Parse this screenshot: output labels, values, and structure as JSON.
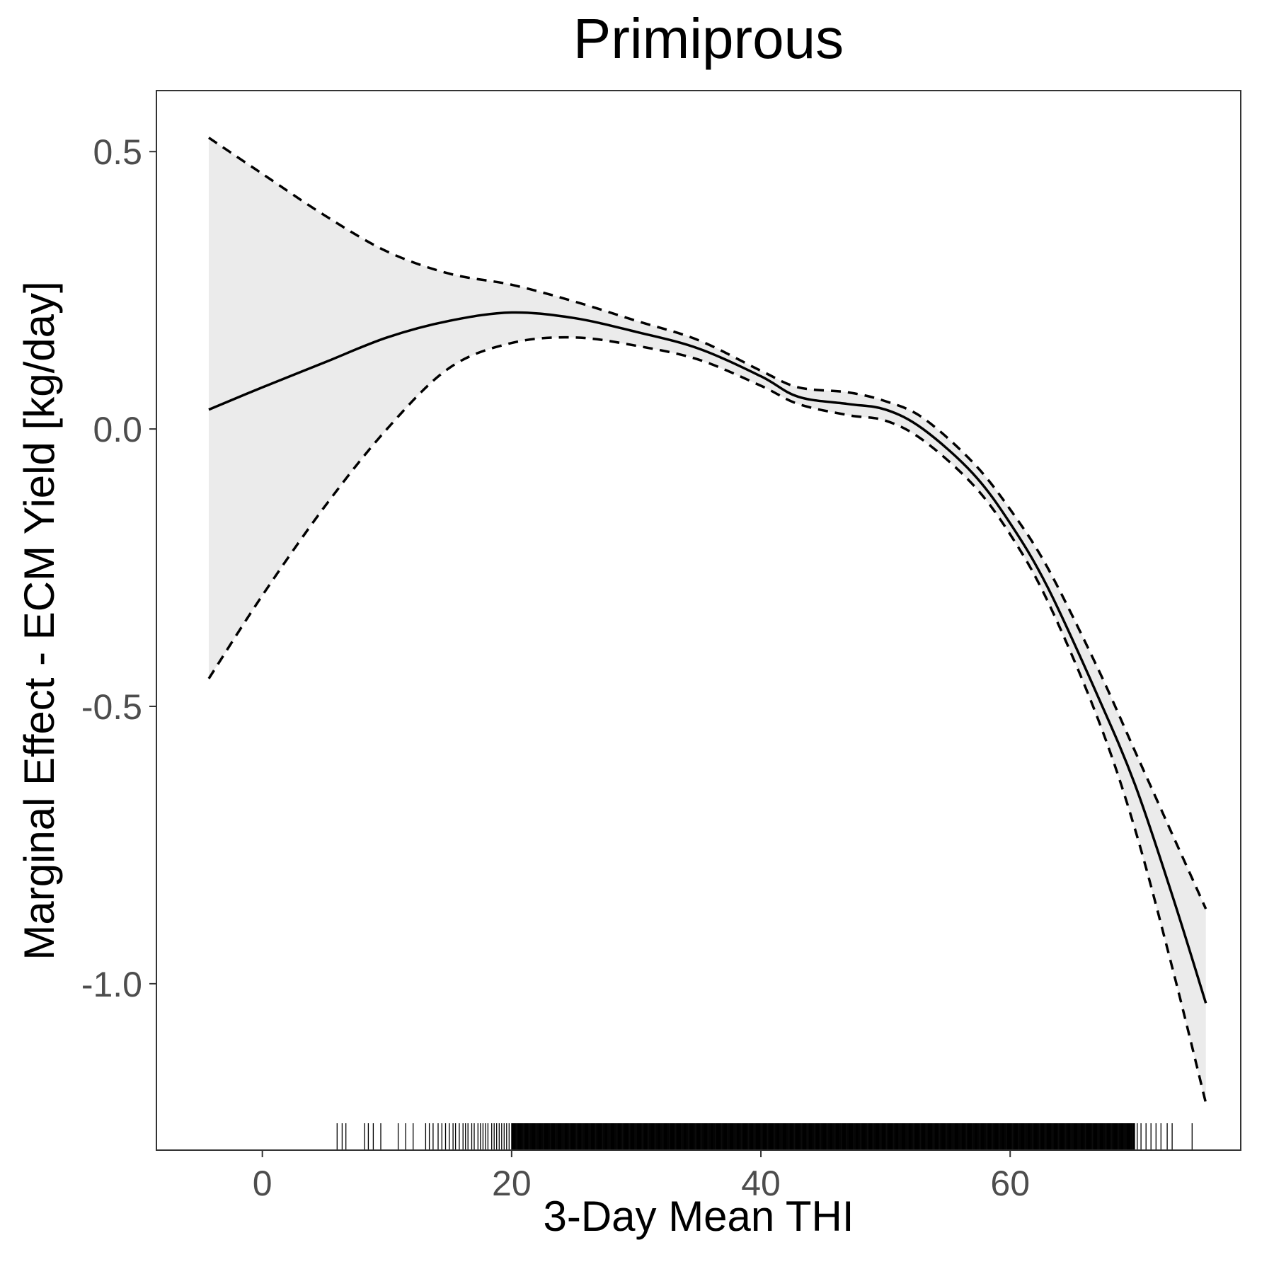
{
  "chart_data": {
    "type": "line",
    "title": "Primiprous",
    "xlabel": "3-Day Mean THI",
    "ylabel": "Marginal Effect - ECM Yield [kg/day]",
    "xlim": [
      -8.5,
      78.5
    ],
    "ylim": [
      -1.3,
      0.61
    ],
    "x_ticks": [
      0,
      20,
      40,
      60
    ],
    "x_tick_labels": [
      "0",
      "20",
      "40",
      "60"
    ],
    "y_ticks": [
      0.5,
      0.0,
      -0.5,
      -1.0
    ],
    "y_tick_labels": [
      "0.5",
      "0.0",
      "-0.5",
      "-1.0"
    ],
    "grid": false,
    "series": [
      {
        "role": "fit",
        "style": "solid",
        "x": [
          -4.3,
          0,
          5,
          10,
          15,
          20,
          25,
          30,
          35,
          40,
          43,
          47,
          50,
          53,
          57,
          60,
          63,
          67,
          70,
          73,
          75.7
        ],
        "y": [
          0.035,
          0.075,
          0.12,
          0.165,
          0.195,
          0.21,
          0.2,
          0.175,
          0.145,
          0.095,
          0.058,
          0.045,
          0.035,
          0.0,
          -0.08,
          -0.17,
          -0.285,
          -0.48,
          -0.64,
          -0.84,
          -1.035
        ]
      },
      {
        "role": "upper-ci",
        "style": "dashed",
        "x": [
          -4.3,
          0,
          5,
          10,
          15,
          20,
          25,
          30,
          35,
          40,
          43,
          47,
          50,
          53,
          57,
          60,
          63,
          67,
          70,
          73,
          75.7
        ],
        "y": [
          0.525,
          0.46,
          0.385,
          0.32,
          0.28,
          0.26,
          0.23,
          0.195,
          0.16,
          0.105,
          0.075,
          0.066,
          0.05,
          0.02,
          -0.06,
          -0.145,
          -0.25,
          -0.43,
          -0.58,
          -0.73,
          -0.865
        ]
      },
      {
        "role": "lower-ci",
        "style": "dashed",
        "x": [
          -4.3,
          0,
          5,
          10,
          15,
          20,
          25,
          30,
          35,
          40,
          43,
          47,
          50,
          53,
          57,
          60,
          63,
          67,
          70,
          73,
          75.7
        ],
        "y": [
          -0.45,
          -0.3,
          -0.14,
          0.0,
          0.11,
          0.155,
          0.165,
          0.15,
          0.125,
          0.078,
          0.045,
          0.025,
          0.015,
          -0.02,
          -0.1,
          -0.19,
          -0.31,
          -0.52,
          -0.72,
          -0.97,
          -1.215
        ]
      }
    ],
    "rug": {
      "sparse": [
        6.0,
        6.4,
        6.7,
        8.2,
        8.5,
        8.9,
        9.5,
        10.9,
        11.5,
        12.1,
        13.1,
        13.4,
        13.7,
        14.1,
        14.4,
        14.7,
        15.0,
        15.3,
        15.5,
        15.8,
        16.1,
        16.3,
        16.5,
        16.8,
        17.0,
        17.3,
        17.5,
        17.7,
        17.9,
        18.1,
        18.4,
        18.6,
        18.8,
        19.0,
        19.2,
        19.4,
        19.6,
        19.8
      ],
      "dense_range": [
        20,
        70
      ],
      "sparse_tail": [
        70.2,
        70.5,
        70.9,
        71.3,
        71.7,
        72.1,
        72.6,
        73.0,
        74.6
      ]
    }
  }
}
